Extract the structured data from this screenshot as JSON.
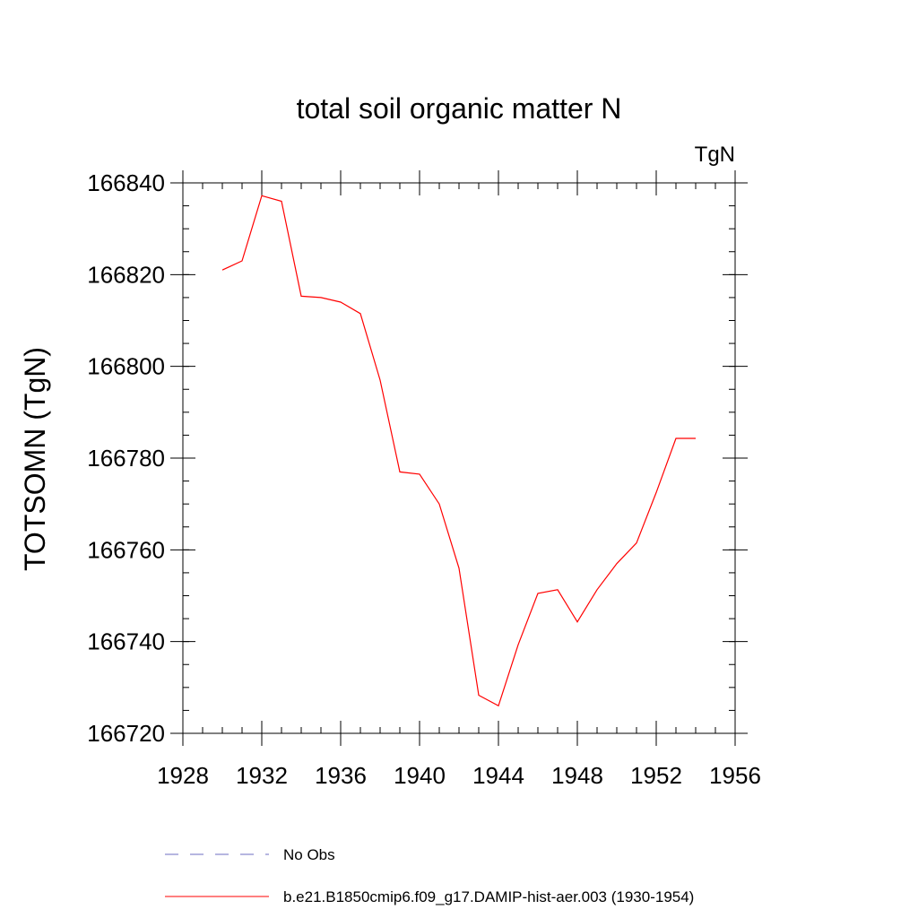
{
  "chart_data": {
    "type": "line",
    "title": "total soil organic matter N",
    "units_label": "TgN",
    "ylabel": "TOTSOMN  (TgN)",
    "xlabel": "",
    "xlim": [
      1928,
      1956
    ],
    "ylim": [
      166720,
      166840
    ],
    "x_ticks": [
      1928,
      1932,
      1936,
      1940,
      1944,
      1948,
      1952,
      1956
    ],
    "y_ticks": [
      166720,
      166740,
      166760,
      166780,
      166800,
      166820,
      166840
    ],
    "x_minor_step": 1,
    "y_minor_step": 5,
    "grid": false,
    "legend_position": "bottom",
    "series": [
      {
        "name": "b.e21.B1850cmip6.f09_g17.DAMIP-hist-aer.003 (1930-1954)",
        "color": "#ff0000",
        "dash": "solid",
        "x": [
          1930,
          1931,
          1932,
          1933,
          1934,
          1935,
          1936,
          1937,
          1938,
          1939,
          1940,
          1941,
          1942,
          1943,
          1944,
          1945,
          1946,
          1947,
          1948,
          1949,
          1950,
          1951,
          1952,
          1953,
          1954
        ],
        "y": [
          166821,
          166823,
          166837.2,
          166836,
          166815.3,
          166815,
          166814,
          166811.5,
          166797,
          166777,
          166776.5,
          166770,
          166756,
          166728.3,
          166726,
          166739.3,
          166750.5,
          166751.3,
          166744.3,
          166751.3,
          166757,
          166761.5,
          166772.5,
          166784.3,
          166784.3
        ]
      }
    ],
    "legend": [
      {
        "label": "No Obs",
        "color": "#6c6cc0",
        "dash": "dashed"
      },
      {
        "label": "b.e21.B1850cmip6.f09_g17.DAMIP-hist-aer.003 (1930-1954)",
        "color": "#ff0000",
        "dash": "solid"
      }
    ]
  }
}
